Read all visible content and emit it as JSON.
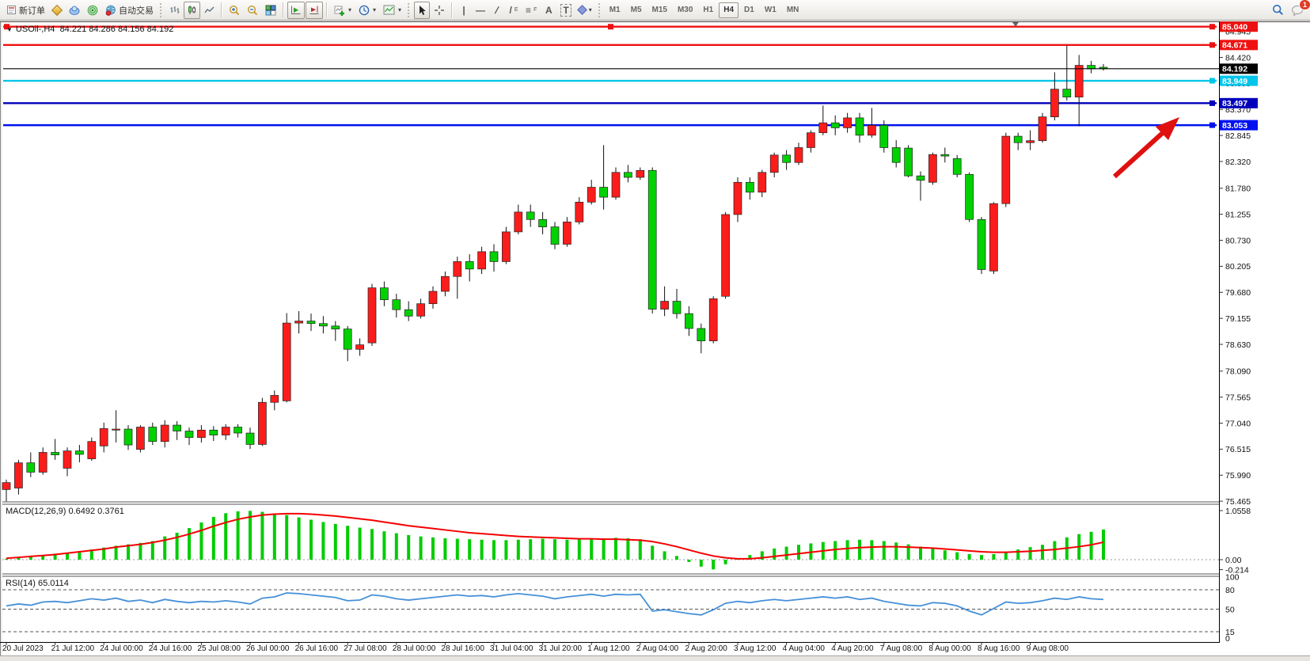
{
  "toolbar": {
    "new_order_label": "新订单",
    "auto_trading_label": "自动交易",
    "timeframes": [
      "M1",
      "M5",
      "M15",
      "M30",
      "H1",
      "H4",
      "D1",
      "W1",
      "MN"
    ],
    "active_timeframe": "H4",
    "notification_count": "1"
  },
  "icons": {
    "symbol_caret": "▼",
    "caret": "▾",
    "crosshair": "+",
    "vline": "|",
    "hline": "—",
    "trendline": "/",
    "channel": "/",
    "channel_sub": "E",
    "fibonacci": "≡",
    "fibonacci_sub": "F",
    "text_tool": "A",
    "label_tool": "T"
  },
  "chart": {
    "symbol_period": "USOil-,H4",
    "ohlc": "84.221 84.286 84.156 84.192"
  },
  "indicators": {
    "macd": {
      "label": "MACD(12,26,9) 0.6492 0.3761",
      "scale": [
        "1.0558",
        "0.00",
        "-0.214"
      ],
      "histogram_color": "#00cc00",
      "signal_color": "#f40000"
    },
    "rsi": {
      "label": "RSI(14) 65.0114",
      "scale": [
        "100",
        "80",
        "50",
        "15",
        "0"
      ],
      "dashed_levels": [
        80,
        50,
        15
      ],
      "line_color": "#4590d8"
    }
  },
  "price_axis": {
    "ticks": [
      "84.945",
      "84.420",
      "83.895",
      "83.370",
      "82.845",
      "82.320",
      "81.780",
      "81.255",
      "80.730",
      "80.205",
      "79.680",
      "79.155",
      "78.630",
      "78.090",
      "77.565",
      "77.040",
      "76.515",
      "75.990",
      "75.465"
    ],
    "levels": [
      {
        "label": "85.040",
        "value": 85.04,
        "color": "#ee1111",
        "handles": "all"
      },
      {
        "label": "84.671",
        "value": 84.671,
        "color": "#ee1111",
        "handles": "right"
      },
      {
        "label": "83.949",
        "value": 83.949,
        "color": "#00c5ea",
        "handles": "right"
      },
      {
        "label": "83.497",
        "value": 83.497,
        "color": "#0000bb",
        "handles": "right"
      },
      {
        "label": "83.053",
        "value": 83.053,
        "color": "#0011ee",
        "handles": "right"
      }
    ],
    "current_price": {
      "label": "84.192",
      "value": 84.192,
      "color": "#000000"
    }
  },
  "time_axis": {
    "labels": [
      "20 Jul 2023",
      "21 Jul 12:00",
      "24 Jul 00:00",
      "24 Jul 16:00",
      "25 Jul 08:00",
      "26 Jul 00:00",
      "26 Jul 16:00",
      "27 Jul 08:00",
      "28 Jul 00:00",
      "28 Jul 16:00",
      "31 Jul 04:00",
      "31 Jul 20:00",
      "1 Aug 12:00",
      "2 Aug 04:00",
      "2 Aug 20:00",
      "3 Aug 12:00",
      "4 Aug 04:00",
      "4 Aug 20:00",
      "7 Aug 08:00",
      "8 Aug 00:00",
      "8 Aug 16:00",
      "9 Aug 08:00"
    ]
  },
  "chart_data": {
    "type": "candlestick",
    "symbol": "USOil-",
    "timeframe": "H4",
    "up_color": "#fb1d1c",
    "down_color": "#00d200",
    "candles": [
      [
        75.7,
        75.9,
        75.46,
        75.84
      ],
      [
        75.73,
        76.3,
        75.6,
        76.24
      ],
      [
        76.24,
        76.45,
        75.95,
        76.05
      ],
      [
        76.05,
        76.55,
        76.0,
        76.45
      ],
      [
        76.45,
        76.72,
        76.3,
        76.4
      ],
      [
        76.13,
        76.55,
        75.97,
        76.48
      ],
      [
        76.48,
        76.6,
        76.25,
        76.41
      ],
      [
        76.32,
        76.75,
        76.28,
        76.67
      ],
      [
        76.58,
        77.05,
        76.45,
        76.93
      ],
      [
        76.9,
        77.3,
        76.65,
        76.92
      ],
      [
        76.92,
        77.0,
        76.5,
        76.6
      ],
      [
        76.51,
        77.0,
        76.45,
        76.96
      ],
      [
        76.96,
        77.05,
        76.6,
        76.67
      ],
      [
        76.67,
        77.1,
        76.55,
        77.0
      ],
      [
        77.0,
        77.08,
        76.7,
        76.88
      ],
      [
        76.88,
        76.95,
        76.6,
        76.75
      ],
      [
        76.75,
        77.0,
        76.65,
        76.9
      ],
      [
        76.9,
        76.98,
        76.68,
        76.8
      ],
      [
        76.8,
        77.02,
        76.7,
        76.96
      ],
      [
        76.96,
        77.02,
        76.75,
        76.84
      ],
      [
        76.84,
        76.95,
        76.52,
        76.61
      ],
      [
        76.61,
        77.55,
        76.58,
        77.46
      ],
      [
        77.46,
        77.7,
        77.3,
        77.6
      ],
      [
        77.49,
        79.26,
        77.46,
        79.06
      ],
      [
        79.06,
        79.3,
        78.85,
        79.1
      ],
      [
        79.1,
        79.25,
        78.9,
        79.05
      ],
      [
        79.05,
        79.2,
        78.85,
        79.0
      ],
      [
        79.0,
        79.1,
        78.7,
        78.94
      ],
      [
        78.94,
        79.0,
        78.29,
        78.53
      ],
      [
        78.53,
        78.75,
        78.4,
        78.62
      ],
      [
        78.66,
        79.85,
        78.6,
        79.77
      ],
      [
        79.77,
        79.9,
        79.4,
        79.53
      ],
      [
        79.53,
        79.65,
        79.17,
        79.33
      ],
      [
        79.33,
        79.5,
        79.1,
        79.2
      ],
      [
        79.2,
        79.55,
        79.15,
        79.45
      ],
      [
        79.45,
        79.8,
        79.35,
        79.7
      ],
      [
        79.7,
        80.1,
        79.6,
        80.0
      ],
      [
        80.0,
        80.4,
        79.55,
        80.3
      ],
      [
        80.3,
        80.45,
        79.9,
        80.15
      ],
      [
        80.15,
        80.6,
        80.05,
        80.5
      ],
      [
        80.5,
        80.65,
        80.1,
        80.3
      ],
      [
        80.3,
        81.0,
        80.25,
        80.9
      ],
      [
        80.9,
        81.45,
        80.85,
        81.3
      ],
      [
        81.3,
        81.45,
        81.0,
        81.15
      ],
      [
        81.15,
        81.3,
        80.85,
        81.0
      ],
      [
        81.0,
        81.1,
        80.55,
        80.65
      ],
      [
        80.65,
        81.2,
        80.6,
        81.1
      ],
      [
        81.1,
        81.6,
        81.05,
        81.5
      ],
      [
        81.5,
        81.95,
        81.45,
        81.8
      ],
      [
        81.8,
        82.65,
        81.35,
        81.6
      ],
      [
        81.6,
        82.2,
        81.55,
        82.1
      ],
      [
        82.1,
        82.25,
        81.9,
        82.0
      ],
      [
        82.0,
        82.2,
        81.95,
        82.14
      ],
      [
        82.14,
        82.2,
        79.25,
        79.34
      ],
      [
        79.34,
        79.8,
        79.2,
        79.5
      ],
      [
        79.5,
        79.75,
        79.15,
        79.25
      ],
      [
        79.25,
        79.4,
        78.8,
        78.95
      ],
      [
        78.95,
        79.05,
        78.45,
        78.7
      ],
      [
        78.7,
        79.6,
        78.65,
        79.55
      ],
      [
        79.6,
        81.3,
        79.55,
        81.25
      ],
      [
        81.25,
        82.0,
        81.1,
        81.9
      ],
      [
        81.9,
        82.0,
        81.55,
        81.7
      ],
      [
        81.7,
        82.15,
        81.6,
        82.1
      ],
      [
        82.1,
        82.5,
        82.0,
        82.45
      ],
      [
        82.45,
        82.55,
        82.15,
        82.3
      ],
      [
        82.3,
        82.7,
        82.25,
        82.6
      ],
      [
        82.6,
        82.95,
        82.5,
        82.9
      ],
      [
        82.9,
        83.45,
        82.85,
        83.1
      ],
      [
        83.1,
        83.25,
        82.85,
        83.0
      ],
      [
        83.0,
        83.3,
        82.9,
        83.2
      ],
      [
        83.2,
        83.3,
        82.7,
        82.85
      ],
      [
        82.85,
        83.4,
        82.8,
        83.05
      ],
      [
        83.05,
        83.15,
        82.5,
        82.6
      ],
      [
        82.6,
        82.75,
        82.2,
        82.3
      ],
      [
        82.59,
        82.65,
        82.0,
        82.03
      ],
      [
        82.03,
        82.12,
        81.53,
        81.94
      ],
      [
        81.9,
        82.5,
        81.85,
        82.46
      ],
      [
        82.46,
        82.6,
        82.3,
        82.43
      ],
      [
        82.38,
        82.45,
        82.0,
        82.06
      ],
      [
        82.06,
        82.1,
        81.1,
        81.15
      ],
      [
        81.15,
        81.2,
        80.05,
        80.14
      ],
      [
        80.11,
        81.5,
        80.05,
        81.47
      ],
      [
        81.47,
        82.9,
        81.4,
        82.83
      ],
      [
        82.83,
        82.9,
        82.55,
        82.7
      ],
      [
        82.7,
        82.95,
        82.55,
        82.74
      ],
      [
        82.74,
        83.3,
        82.7,
        83.22
      ],
      [
        83.22,
        84.12,
        83.15,
        83.78
      ],
      [
        83.78,
        84.66,
        83.55,
        83.62
      ],
      [
        83.62,
        84.47,
        83.03,
        84.26
      ],
      [
        84.26,
        84.35,
        84.1,
        84.19
      ],
      [
        84.221,
        84.286,
        84.156,
        84.192
      ]
    ],
    "macd_histogram": [
      0.02,
      0.05,
      0.08,
      0.1,
      0.13,
      0.15,
      0.18,
      0.22,
      0.26,
      0.3,
      0.33,
      0.36,
      0.4,
      0.5,
      0.58,
      0.68,
      0.8,
      0.92,
      1.0,
      1.04,
      1.05,
      1.03,
      0.99,
      0.96,
      0.91,
      0.86,
      0.81,
      0.77,
      0.73,
      0.69,
      0.66,
      0.61,
      0.57,
      0.53,
      0.5,
      0.48,
      0.46,
      0.45,
      0.44,
      0.43,
      0.42,
      0.42,
      0.43,
      0.44,
      0.45,
      0.44,
      0.43,
      0.44,
      0.45,
      0.46,
      0.47,
      0.46,
      0.44,
      0.3,
      0.18,
      0.08,
      -0.05,
      -0.15,
      -0.21,
      -0.1,
      0.02,
      0.1,
      0.18,
      0.24,
      0.28,
      0.32,
      0.35,
      0.38,
      0.4,
      0.42,
      0.43,
      0.42,
      0.4,
      0.37,
      0.33,
      0.28,
      0.24,
      0.2,
      0.16,
      0.12,
      0.1,
      0.12,
      0.17,
      0.22,
      0.27,
      0.32,
      0.4,
      0.48,
      0.55,
      0.6,
      0.65
    ],
    "macd_signal": [
      0.03,
      0.05,
      0.07,
      0.09,
      0.11,
      0.14,
      0.17,
      0.2,
      0.23,
      0.27,
      0.3,
      0.33,
      0.37,
      0.42,
      0.48,
      0.55,
      0.63,
      0.72,
      0.8,
      0.87,
      0.92,
      0.96,
      0.98,
      0.99,
      0.99,
      0.98,
      0.96,
      0.94,
      0.91,
      0.88,
      0.85,
      0.81,
      0.77,
      0.73,
      0.7,
      0.67,
      0.64,
      0.61,
      0.58,
      0.56,
      0.54,
      0.52,
      0.5,
      0.49,
      0.48,
      0.47,
      0.46,
      0.45,
      0.45,
      0.44,
      0.44,
      0.43,
      0.42,
      0.39,
      0.34,
      0.28,
      0.21,
      0.14,
      0.08,
      0.04,
      0.02,
      0.02,
      0.04,
      0.07,
      0.1,
      0.13,
      0.16,
      0.19,
      0.22,
      0.24,
      0.26,
      0.27,
      0.28,
      0.28,
      0.27,
      0.26,
      0.25,
      0.23,
      0.21,
      0.19,
      0.17,
      0.16,
      0.16,
      0.17,
      0.18,
      0.2,
      0.22,
      0.25,
      0.28,
      0.32,
      0.376
    ],
    "rsi": [
      55,
      58,
      56,
      61,
      62,
      60,
      63,
      66,
      64,
      67,
      62,
      64,
      60,
      65,
      62,
      60,
      62,
      61,
      63,
      61,
      58,
      67,
      69,
      75,
      74,
      72,
      70,
      68,
      63,
      64,
      72,
      70,
      66,
      64,
      66,
      68,
      70,
      72,
      70,
      71,
      69,
      72,
      74,
      72,
      70,
      66,
      69,
      71,
      73,
      70,
      73,
      72,
      73,
      47,
      49,
      46,
      43,
      41,
      49,
      59,
      62,
      60,
      63,
      65,
      63,
      65,
      67,
      69,
      67,
      69,
      65,
      67,
      62,
      59,
      56,
      55,
      60,
      59,
      55,
      47,
      41,
      51,
      61,
      59,
      60,
      63,
      67,
      65,
      69,
      66,
      65.01
    ],
    "annotations": {
      "arrow": {
        "from": [
          1408,
          223
        ],
        "to": [
          1490,
          148
        ],
        "color": "#e01010"
      }
    }
  }
}
